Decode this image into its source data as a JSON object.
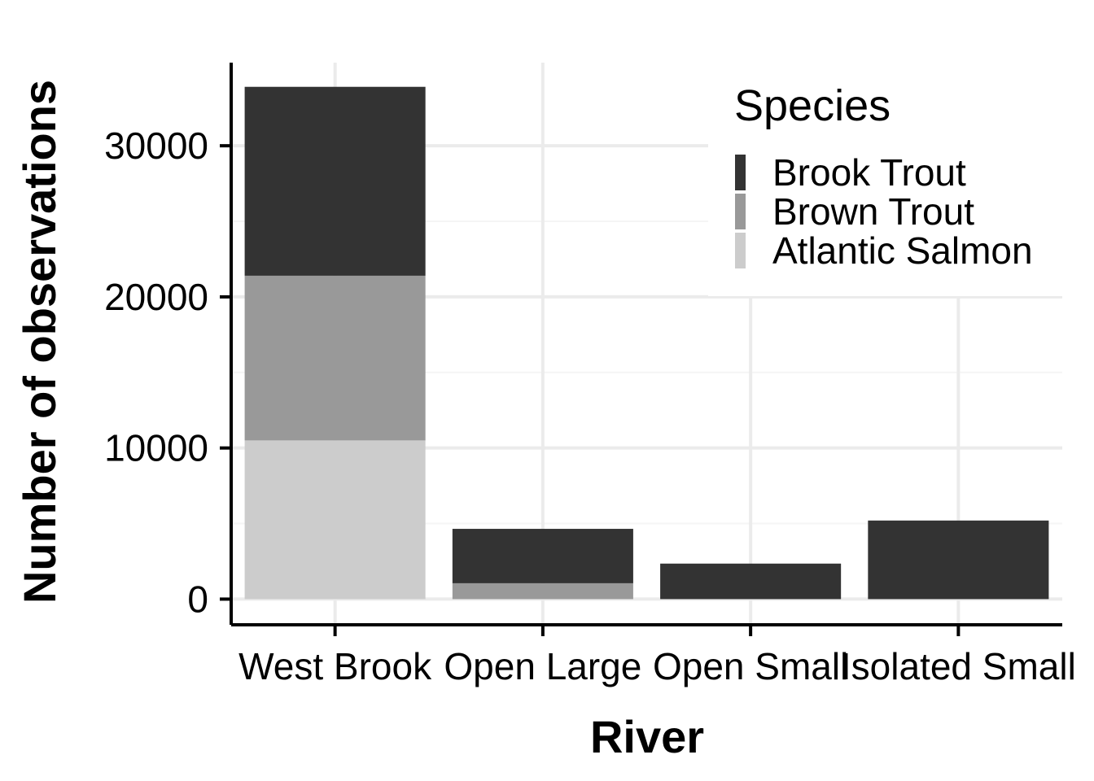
{
  "chart_data": {
    "type": "bar",
    "stacked": true,
    "title": "",
    "xlabel": "River",
    "ylabel": "Number of observations",
    "categories": [
      "West Brook",
      "Open Large",
      "Open Small",
      "Isolated Small"
    ],
    "series": [
      {
        "name": "Brook Trout",
        "color": "#333333",
        "values": [
          12500,
          3600,
          2350,
          5200
        ]
      },
      {
        "name": "Brown Trout",
        "color": "#999999",
        "values": [
          10900,
          1050,
          0,
          0
        ]
      },
      {
        "name": "Atlantic Salmon",
        "color": "#cccccc",
        "values": [
          10500,
          0,
          0,
          0
        ]
      }
    ],
    "stack_order": [
      "Atlantic Salmon",
      "Brown Trout",
      "Brook Trout"
    ],
    "yticks": [
      0,
      10000,
      20000,
      30000
    ],
    "ylim": [
      -1700,
      35500
    ],
    "grid": true,
    "legend": {
      "title": "Species",
      "position": "top-right"
    }
  }
}
